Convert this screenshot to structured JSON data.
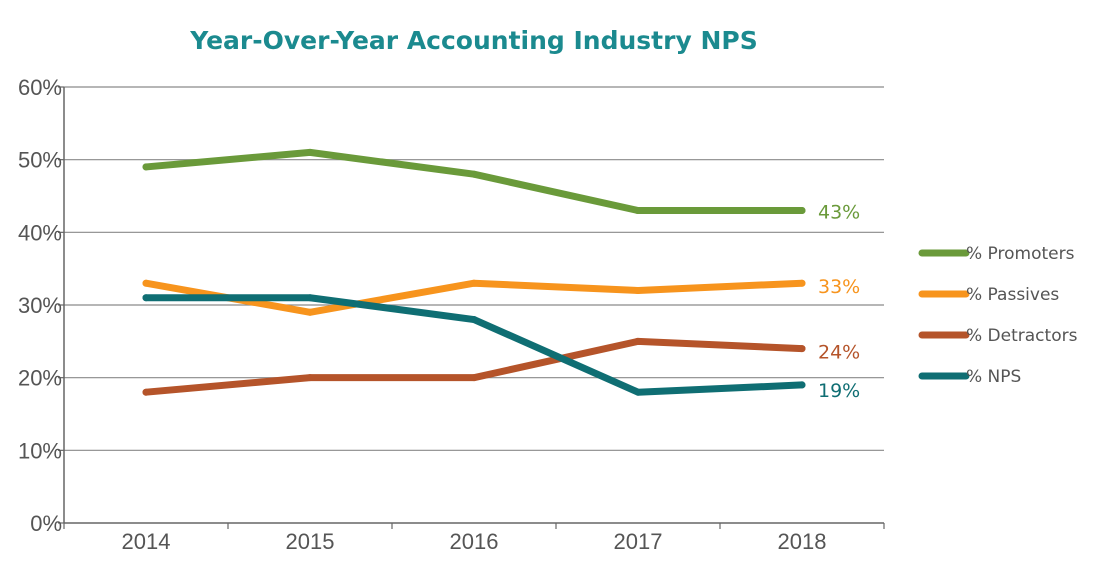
{
  "chart_data": {
    "type": "line",
    "title": "Year-Over-Year Accounting Industry NPS",
    "x": [
      "2014",
      "2015",
      "2016",
      "2017",
      "2018"
    ],
    "ylim": [
      0,
      60
    ],
    "yticks": [
      "0%",
      "10%",
      "20%",
      "30%",
      "40%",
      "50%",
      "60%"
    ],
    "grid": true,
    "legend": "right",
    "series": [
      {
        "name": "% Promoters",
        "values": [
          49,
          51,
          48,
          43,
          43
        ],
        "color": "#6a9a3a",
        "end_label": "43%"
      },
      {
        "name": "% Passives",
        "values": [
          33,
          29,
          33,
          32,
          33
        ],
        "color": "#f7941d",
        "end_label": "33%"
      },
      {
        "name": "% Detractors",
        "values": [
          18,
          20,
          20,
          25,
          24
        ],
        "color": "#b5542a",
        "end_label": "24%"
      },
      {
        "name": "% NPS",
        "values": [
          31,
          31,
          28,
          18,
          19
        ],
        "color": "#0f6e73",
        "end_label": "19%"
      }
    ]
  }
}
